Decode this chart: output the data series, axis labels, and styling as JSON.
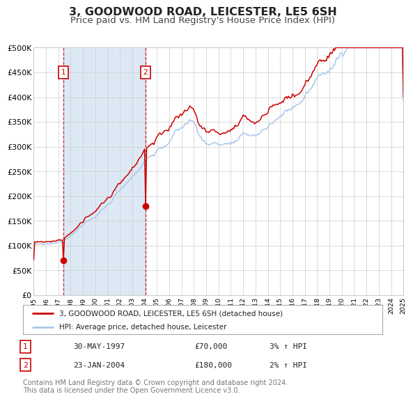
{
  "title": "3, GOODWOOD ROAD, LEICESTER, LE5 6SH",
  "subtitle": "Price paid vs. HM Land Registry's House Price Index (HPI)",
  "title_fontsize": 11.5,
  "subtitle_fontsize": 9.5,
  "background_color": "#ffffff",
  "grid_color": "#cccccc",
  "hpi_line_color": "#aac8e8",
  "price_line_color": "#cc0000",
  "sale_marker_color": "#cc0000",
  "highlight_bg_color": "#dce9f5",
  "dashed_line_color": "#cc0000",
  "sale1": {
    "date": 1997.41,
    "price": 70000,
    "label": "1",
    "date_str": "30-MAY-1997",
    "pct": "3% ↑ HPI"
  },
  "sale2": {
    "date": 2004.06,
    "price": 180000,
    "label": "2",
    "date_str": "23-JAN-2004",
    "pct": "2% ↑ HPI"
  },
  "ylim": [
    0,
    500000
  ],
  "xlim": [
    1995,
    2025
  ],
  "yticks": [
    0,
    50000,
    100000,
    150000,
    200000,
    250000,
    300000,
    350000,
    400000,
    450000,
    500000
  ],
  "ytick_labels": [
    "£0",
    "£50K",
    "£100K",
    "£150K",
    "£200K",
    "£250K",
    "£300K",
    "£350K",
    "£400K",
    "£450K",
    "£500K"
  ],
  "legend_red_label": "3, GOODWOOD ROAD, LEICESTER, LE5 6SH (detached house)",
  "legend_blue_label": "HPI: Average price, detached house, Leicester",
  "footer": "Contains HM Land Registry data © Crown copyright and database right 2024.\nThis data is licensed under the Open Government Licence v3.0.",
  "footer_fontsize": 7.0
}
